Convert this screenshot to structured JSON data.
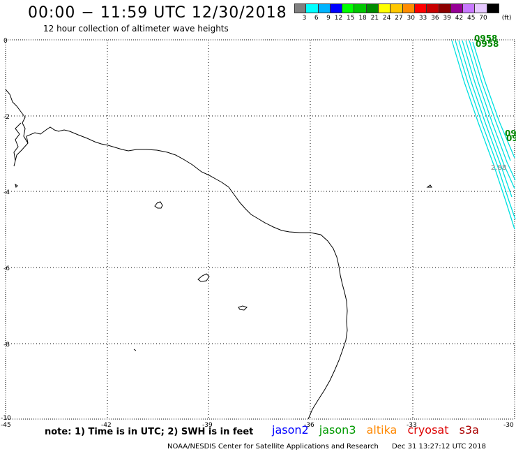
{
  "header": {
    "title": "00:00 − 11:59 UTC 12/30/2018",
    "subtitle": "12 hour collection of altimeter wave heights"
  },
  "colorbar": {
    "unit_label": "(ft)",
    "bins": [
      {
        "label": "3",
        "color": "#808080"
      },
      {
        "label": "6",
        "color": "#00ffff"
      },
      {
        "label": "9",
        "color": "#00b4ff"
      },
      {
        "label": "12",
        "color": "#0000ff"
      },
      {
        "label": "15",
        "color": "#00ff00"
      },
      {
        "label": "18",
        "color": "#00c800"
      },
      {
        "label": "21",
        "color": "#008c00"
      },
      {
        "label": "24",
        "color": "#ffff00"
      },
      {
        "label": "27",
        "color": "#ffc800"
      },
      {
        "label": "30",
        "color": "#ff8c00"
      },
      {
        "label": "33",
        "color": "#ff0000"
      },
      {
        "label": "36",
        "color": "#c80000"
      },
      {
        "label": "39",
        "color": "#8c0000"
      },
      {
        "label": "42",
        "color": "#960096"
      },
      {
        "label": "45",
        "color": "#c878ff"
      },
      {
        "label": "70",
        "color": "#e6c8ff"
      },
      {
        "label": "",
        "color": "#000000"
      }
    ]
  },
  "map": {
    "lon_ticks": [
      "-45",
      "-42",
      "-39",
      "-36",
      "-33",
      "-30"
    ],
    "lat_ticks": [
      "0",
      "-2",
      "-4",
      "-6",
      "-8",
      "-10"
    ],
    "lon_range": [
      -45,
      -30
    ],
    "lat_range": [
      -10,
      0
    ],
    "grid": "dotted",
    "track_color": "#00e0e0",
    "time_label_color": "#008800",
    "time_labels": [
      "0958",
      "0958",
      "09",
      "09"
    ],
    "swh_label": "2.88"
  },
  "note": "note: 1) Time is in UTC; 2) SWH is in feet",
  "satellites": [
    {
      "name": "jason2",
      "color": "#0000ff"
    },
    {
      "name": "jason3",
      "color": "#009900"
    },
    {
      "name": "altika",
      "color": "#ff8800"
    },
    {
      "name": "cryosat",
      "color": "#dd0000"
    },
    {
      "name": "s3a",
      "color": "#aa0000"
    }
  ],
  "footer": {
    "credit": "NOAA/NESDIS Center for Satellite Applications and Research",
    "timestamp": "Dec 31 13:27:12 UTC 2018"
  }
}
